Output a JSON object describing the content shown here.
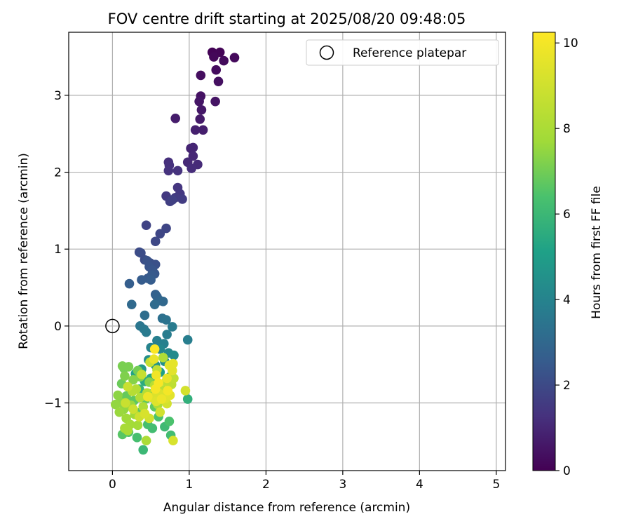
{
  "chart_data": {
    "type": "scatter",
    "title": "FOV centre drift starting at 2025/08/20 09:48:05",
    "xlabel": "Angular distance from reference (arcmin)",
    "ylabel": "Rotation from reference (arcmin)",
    "xlim": [
      -0.57,
      5.12
    ],
    "ylim": [
      -1.88,
      3.82
    ],
    "xticks": [
      0,
      1,
      2,
      3,
      4,
      5
    ],
    "yticks": [
      -1,
      0,
      1,
      2,
      3
    ],
    "grid": true,
    "legend": {
      "placement": "top-right",
      "entries": [
        "Reference platepar"
      ]
    },
    "reference_point": {
      "label": "Reference platepar",
      "x": 0,
      "y": 0
    },
    "colorbar": {
      "label": "Hours from first FF file",
      "colormap": "viridis",
      "range": [
        0,
        10.25
      ],
      "ticks": [
        0,
        2,
        4,
        6,
        8,
        10
      ]
    },
    "points": [
      {
        "x": 1.3,
        "y": 3.56,
        "h": 0.05
      },
      {
        "x": 1.4,
        "y": 3.56,
        "h": 0.1
      },
      {
        "x": 1.59,
        "y": 3.49,
        "h": 0.2
      },
      {
        "x": 1.45,
        "y": 3.45,
        "h": 0.25
      },
      {
        "x": 1.32,
        "y": 3.5,
        "h": 0.15
      },
      {
        "x": 1.35,
        "y": 3.33,
        "h": 0.3
      },
      {
        "x": 1.15,
        "y": 3.26,
        "h": 0.35
      },
      {
        "x": 1.38,
        "y": 3.18,
        "h": 0.4
      },
      {
        "x": 1.15,
        "y": 2.99,
        "h": 0.45
      },
      {
        "x": 1.34,
        "y": 2.92,
        "h": 0.5
      },
      {
        "x": 1.13,
        "y": 2.92,
        "h": 0.55
      },
      {
        "x": 1.16,
        "y": 2.81,
        "h": 0.6
      },
      {
        "x": 1.14,
        "y": 2.69,
        "h": 0.65
      },
      {
        "x": 0.82,
        "y": 2.7,
        "h": 0.7
      },
      {
        "x": 1.18,
        "y": 2.55,
        "h": 0.75
      },
      {
        "x": 1.08,
        "y": 2.55,
        "h": 0.8
      },
      {
        "x": 1.02,
        "y": 2.31,
        "h": 0.9
      },
      {
        "x": 1.05,
        "y": 2.32,
        "h": 0.95
      },
      {
        "x": 1.05,
        "y": 2.21,
        "h": 1.0
      },
      {
        "x": 0.98,
        "y": 2.13,
        "h": 1.05
      },
      {
        "x": 1.11,
        "y": 2.1,
        "h": 1.1
      },
      {
        "x": 1.03,
        "y": 2.05,
        "h": 1.15
      },
      {
        "x": 0.73,
        "y": 2.13,
        "h": 1.2
      },
      {
        "x": 0.74,
        "y": 2.09,
        "h": 1.25
      },
      {
        "x": 0.85,
        "y": 2.02,
        "h": 1.3
      },
      {
        "x": 0.73,
        "y": 2.02,
        "h": 1.3
      },
      {
        "x": 0.85,
        "y": 1.8,
        "h": 1.4
      },
      {
        "x": 0.88,
        "y": 1.72,
        "h": 1.45
      },
      {
        "x": 0.7,
        "y": 1.69,
        "h": 1.5
      },
      {
        "x": 0.82,
        "y": 1.67,
        "h": 1.55
      },
      {
        "x": 0.91,
        "y": 1.65,
        "h": 1.6
      },
      {
        "x": 0.75,
        "y": 1.62,
        "h": 1.65
      },
      {
        "x": 0.78,
        "y": 1.64,
        "h": 1.7
      },
      {
        "x": 0.44,
        "y": 1.31,
        "h": 1.8
      },
      {
        "x": 0.7,
        "y": 1.27,
        "h": 1.85
      },
      {
        "x": 0.62,
        "y": 1.2,
        "h": 1.9
      },
      {
        "x": 0.56,
        "y": 1.1,
        "h": 1.95
      },
      {
        "x": 0.35,
        "y": 0.96,
        "h": 2.0
      },
      {
        "x": 0.42,
        "y": 0.86,
        "h": 2.05
      },
      {
        "x": 0.37,
        "y": 0.95,
        "h": 2.1
      },
      {
        "x": 0.49,
        "y": 0.82,
        "h": 2.15
      },
      {
        "x": 0.56,
        "y": 0.8,
        "h": 2.2
      },
      {
        "x": 0.45,
        "y": 0.85,
        "h": 2.25
      },
      {
        "x": 0.48,
        "y": 0.77,
        "h": 2.3
      },
      {
        "x": 0.52,
        "y": 0.73,
        "h": 2.35
      },
      {
        "x": 0.55,
        "y": 0.68,
        "h": 2.4
      },
      {
        "x": 0.46,
        "y": 0.62,
        "h": 2.45
      },
      {
        "x": 0.51,
        "y": 0.66,
        "h": 2.5
      },
      {
        "x": 0.38,
        "y": 0.6,
        "h": 2.55
      },
      {
        "x": 0.5,
        "y": 0.6,
        "h": 2.6
      },
      {
        "x": 0.22,
        "y": 0.55,
        "h": 2.65
      },
      {
        "x": 0.56,
        "y": 0.41,
        "h": 2.7
      },
      {
        "x": 0.58,
        "y": 0.38,
        "h": 2.8
      },
      {
        "x": 0.62,
        "y": 0.33,
        "h": 2.9
      },
      {
        "x": 0.66,
        "y": 0.32,
        "h": 3.0
      },
      {
        "x": 0.25,
        "y": 0.28,
        "h": 3.05
      },
      {
        "x": 0.55,
        "y": 0.28,
        "h": 3.1
      },
      {
        "x": 0.42,
        "y": 0.14,
        "h": 3.2
      },
      {
        "x": 0.65,
        "y": 0.1,
        "h": 3.3
      },
      {
        "x": 0.7,
        "y": 0.08,
        "h": 3.4
      },
      {
        "x": 0.36,
        "y": 0.0,
        "h": 3.5
      },
      {
        "x": 0.41,
        "y": -0.04,
        "h": 3.6
      },
      {
        "x": 0.44,
        "y": -0.08,
        "h": 3.65
      },
      {
        "x": 0.78,
        "y": -0.01,
        "h": 3.7
      },
      {
        "x": 0.71,
        "y": -0.11,
        "h": 3.75
      },
      {
        "x": 0.98,
        "y": -0.18,
        "h": 3.8
      },
      {
        "x": 0.58,
        "y": -0.19,
        "h": 3.85
      },
      {
        "x": 0.67,
        "y": -0.23,
        "h": 3.9
      },
      {
        "x": 0.5,
        "y": -0.28,
        "h": 4.0
      },
      {
        "x": 0.62,
        "y": -0.3,
        "h": 4.1
      },
      {
        "x": 0.73,
        "y": -0.35,
        "h": 4.2
      },
      {
        "x": 0.8,
        "y": -0.38,
        "h": 4.3
      },
      {
        "x": 0.47,
        "y": -0.44,
        "h": 4.4
      },
      {
        "x": 0.68,
        "y": -0.46,
        "h": 4.5
      },
      {
        "x": 0.56,
        "y": -0.51,
        "h": 4.6
      },
      {
        "x": 0.38,
        "y": -0.56,
        "h": 4.8
      },
      {
        "x": 0.62,
        "y": -0.6,
        "h": 5.0
      },
      {
        "x": 0.3,
        "y": -0.62,
        "h": 5.2
      },
      {
        "x": 0.5,
        "y": -0.68,
        "h": 5.3
      },
      {
        "x": 0.42,
        "y": -0.72,
        "h": 5.5
      },
      {
        "x": 0.75,
        "y": -0.66,
        "h": 5.6
      },
      {
        "x": 0.98,
        "y": -0.95,
        "h": 5.7
      },
      {
        "x": 0.35,
        "y": -0.82,
        "h": 5.8
      },
      {
        "x": 0.47,
        "y": -0.88,
        "h": 5.9
      },
      {
        "x": 0.4,
        "y": -1.61,
        "h": 6.0
      },
      {
        "x": 0.68,
        "y": -1.31,
        "h": 6.1
      },
      {
        "x": 0.52,
        "y": -1.33,
        "h": 6.2
      },
      {
        "x": 0.76,
        "y": -1.42,
        "h": 6.2
      },
      {
        "x": 0.32,
        "y": -1.45,
        "h": 6.3
      },
      {
        "x": 0.46,
        "y": -1.28,
        "h": 6.3
      },
      {
        "x": 0.74,
        "y": -1.24,
        "h": 6.4
      },
      {
        "x": 0.6,
        "y": -1.18,
        "h": 6.4
      },
      {
        "x": 0.21,
        "y": -1.38,
        "h": 6.5
      },
      {
        "x": 0.13,
        "y": -1.41,
        "h": 6.6
      },
      {
        "x": 0.37,
        "y": -1.12,
        "h": 6.6
      },
      {
        "x": 0.55,
        "y": -1.05,
        "h": 6.7
      },
      {
        "x": 0.28,
        "y": -0.97,
        "h": 6.7
      },
      {
        "x": 0.18,
        "y": -0.91,
        "h": 6.8
      },
      {
        "x": 0.43,
        "y": -0.95,
        "h": 6.8
      },
      {
        "x": 0.12,
        "y": -0.75,
        "h": 6.9
      },
      {
        "x": 0.63,
        "y": -0.87,
        "h": 6.9
      },
      {
        "x": 0.33,
        "y": -0.58,
        "h": 7.0
      },
      {
        "x": 0.15,
        "y": -0.55,
        "h": 7.0
      },
      {
        "x": 0.13,
        "y": -0.52,
        "h": 7.1
      },
      {
        "x": 0.21,
        "y": -0.53,
        "h": 7.1
      },
      {
        "x": 0.16,
        "y": -0.65,
        "h": 7.2
      },
      {
        "x": 0.36,
        "y": -0.66,
        "h": 7.2
      },
      {
        "x": 0.27,
        "y": -0.7,
        "h": 7.3
      },
      {
        "x": 0.48,
        "y": -0.73,
        "h": 7.3
      },
      {
        "x": 0.07,
        "y": -0.9,
        "h": 7.4
      },
      {
        "x": 0.1,
        "y": -0.99,
        "h": 7.4
      },
      {
        "x": 0.04,
        "y": -1.02,
        "h": 7.5
      },
      {
        "x": 0.15,
        "y": -1.08,
        "h": 7.5
      },
      {
        "x": 0.24,
        "y": -1.03,
        "h": 7.6
      },
      {
        "x": 0.09,
        "y": -1.12,
        "h": 7.6
      },
      {
        "x": 0.29,
        "y": -1.15,
        "h": 7.7
      },
      {
        "x": 0.18,
        "y": -1.2,
        "h": 7.7
      },
      {
        "x": 0.23,
        "y": -1.28,
        "h": 7.8
      },
      {
        "x": 0.33,
        "y": -1.29,
        "h": 7.8
      },
      {
        "x": 0.16,
        "y": -1.33,
        "h": 7.9
      },
      {
        "x": 0.2,
        "y": -1.36,
        "h": 7.9
      },
      {
        "x": 0.44,
        "y": -1.49,
        "h": 8.0
      },
      {
        "x": 0.59,
        "y": -1.02,
        "h": 8.0
      },
      {
        "x": 0.66,
        "y": -0.41,
        "h": 8.1
      },
      {
        "x": 0.4,
        "y": -1.05,
        "h": 8.1
      },
      {
        "x": 0.36,
        "y": -0.93,
        "h": 8.2
      },
      {
        "x": 0.31,
        "y": -0.82,
        "h": 8.2
      },
      {
        "x": 0.26,
        "y": -0.85,
        "h": 8.3
      },
      {
        "x": 0.45,
        "y": -0.87,
        "h": 8.3
      },
      {
        "x": 0.55,
        "y": -0.77,
        "h": 8.4
      },
      {
        "x": 0.65,
        "y": -0.83,
        "h": 8.4
      },
      {
        "x": 0.7,
        "y": -0.72,
        "h": 8.5
      },
      {
        "x": 0.77,
        "y": -0.76,
        "h": 8.5
      },
      {
        "x": 0.8,
        "y": -0.68,
        "h": 8.6
      },
      {
        "x": 0.58,
        "y": -0.57,
        "h": 8.6
      },
      {
        "x": 0.49,
        "y": -0.47,
        "h": 8.7
      },
      {
        "x": 0.38,
        "y": -0.63,
        "h": 8.7
      },
      {
        "x": 0.2,
        "y": -0.79,
        "h": 8.8
      },
      {
        "x": 0.17,
        "y": -1.0,
        "h": 8.8
      },
      {
        "x": 0.27,
        "y": -1.08,
        "h": 8.9
      },
      {
        "x": 0.35,
        "y": -1.18,
        "h": 8.9
      },
      {
        "x": 0.48,
        "y": -1.2,
        "h": 9.0
      },
      {
        "x": 0.62,
        "y": -1.12,
        "h": 9.0
      },
      {
        "x": 0.71,
        "y": -1.01,
        "h": 9.1
      },
      {
        "x": 0.95,
        "y": -0.84,
        "h": 9.1
      },
      {
        "x": 0.79,
        "y": -1.49,
        "h": 9.2
      },
      {
        "x": 0.42,
        "y": -1.14,
        "h": 9.2
      },
      {
        "x": 0.52,
        "y": -0.93,
        "h": 9.3
      },
      {
        "x": 0.61,
        "y": -0.88,
        "h": 9.3
      },
      {
        "x": 0.69,
        "y": -0.94,
        "h": 9.4
      },
      {
        "x": 0.57,
        "y": -0.98,
        "h": 9.4
      },
      {
        "x": 0.75,
        "y": -0.9,
        "h": 9.5
      },
      {
        "x": 0.78,
        "y": -0.58,
        "h": 9.5
      },
      {
        "x": 0.74,
        "y": -0.51,
        "h": 9.6
      },
      {
        "x": 0.79,
        "y": -0.49,
        "h": 9.6
      },
      {
        "x": 0.54,
        "y": -0.43,
        "h": 9.7
      },
      {
        "x": 0.71,
        "y": -0.68,
        "h": 9.7
      },
      {
        "x": 0.46,
        "y": -0.92,
        "h": 9.8
      },
      {
        "x": 0.64,
        "y": -0.95,
        "h": 9.8
      },
      {
        "x": 0.57,
        "y": -0.64,
        "h": 9.9
      },
      {
        "x": 0.72,
        "y": -0.84,
        "h": 10.0
      },
      {
        "x": 0.56,
        "y": -0.82,
        "h": 10.05
      },
      {
        "x": 0.55,
        "y": -0.3,
        "h": 10.2
      },
      {
        "x": 0.6,
        "y": -0.74,
        "h": 10.1
      }
    ]
  }
}
